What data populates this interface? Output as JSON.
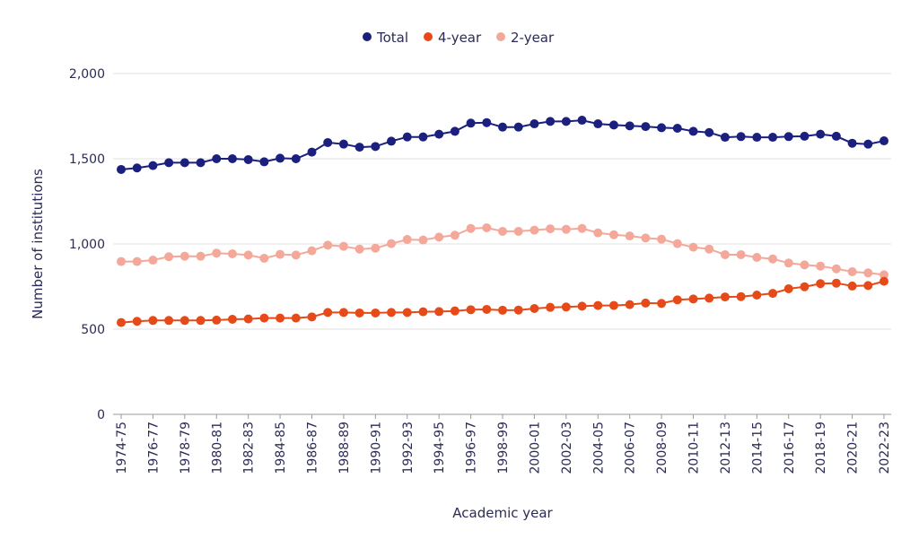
{
  "chart_data": {
    "type": "line",
    "title": "",
    "xlabel": "Academic year",
    "ylabel": "Number of institutions",
    "ylim": [
      0,
      2000
    ],
    "yticks": [
      0,
      500,
      1000,
      1500,
      2000
    ],
    "ytick_labels": [
      "0",
      "500",
      "1,000",
      "1,500",
      "2,000"
    ],
    "grid": true,
    "legend_position": "top-center",
    "x": [
      "1974-75",
      "1975-76",
      "1976-77",
      "1977-78",
      "1978-79",
      "1979-80",
      "1980-81",
      "1981-82",
      "1982-83",
      "1983-84",
      "1984-85",
      "1985-86",
      "1986-87",
      "1987-88",
      "1988-89",
      "1989-90",
      "1990-91",
      "1991-92",
      "1992-93",
      "1993-94",
      "1994-95",
      "1995-96",
      "1996-97",
      "1997-98",
      "1998-99",
      "1999-00",
      "2000-01",
      "2001-02",
      "2002-03",
      "2003-04",
      "2004-05",
      "2005-06",
      "2006-07",
      "2007-08",
      "2008-09",
      "2009-10",
      "2010-11",
      "2011-12",
      "2012-13",
      "2013-14",
      "2014-15",
      "2015-16",
      "2016-17",
      "2017-18",
      "2018-19",
      "2019-20",
      "2020-21",
      "2021-22",
      "2022-23"
    ],
    "xtick_labels": [
      "1974-75",
      "1976-77",
      "1978-79",
      "1980-81",
      "1982-83",
      "1984-85",
      "1986-87",
      "1988-89",
      "1990-91",
      "1992-93",
      "1994-95",
      "1996-97",
      "1998-99",
      "2000-01",
      "2002-03",
      "2004-05",
      "2006-07",
      "2008-09",
      "2010-11",
      "2012-13",
      "2014-15",
      "2016-17",
      "2018-19",
      "2020-21",
      "2022-23"
    ],
    "series": [
      {
        "name": "Total",
        "color": "#1b1f7e",
        "values": [
          1437,
          1446,
          1460,
          1477,
          1477,
          1477,
          1500,
          1500,
          1495,
          1482,
          1503,
          1500,
          1539,
          1595,
          1586,
          1568,
          1572,
          1603,
          1628,
          1628,
          1644,
          1661,
          1709,
          1712,
          1686,
          1686,
          1705,
          1719,
          1719,
          1726,
          1705,
          1698,
          1693,
          1689,
          1682,
          1679,
          1661,
          1654,
          1626,
          1630,
          1626,
          1626,
          1630,
          1632,
          1644,
          1632,
          1591,
          1586,
          1605
        ]
      },
      {
        "name": "4-year",
        "color": "#e64a19",
        "values": [
          539,
          546,
          551,
          551,
          551,
          551,
          553,
          558,
          560,
          565,
          565,
          565,
          572,
          598,
          598,
          595,
          595,
          598,
          598,
          602,
          603,
          607,
          614,
          616,
          611,
          612,
          621,
          628,
          630,
          635,
          639,
          639,
          644,
          653,
          651,
          672,
          677,
          682,
          689,
          691,
          700,
          710,
          737,
          749,
          767,
          770,
          753,
          756,
          781
        ]
      },
      {
        "name": "2-year",
        "color": "#f4a89a",
        "values": [
          897,
          897,
          905,
          925,
          928,
          928,
          946,
          942,
          935,
          916,
          939,
          935,
          960,
          993,
          986,
          970,
          975,
          1002,
          1026,
          1023,
          1040,
          1051,
          1091,
          1095,
          1074,
          1074,
          1081,
          1089,
          1086,
          1091,
          1065,
          1054,
          1047,
          1035,
          1028,
          1002,
          981,
          970,
          937,
          937,
          921,
          912,
          888,
          877,
          870,
          854,
          837,
          830,
          819
        ]
      }
    ]
  }
}
